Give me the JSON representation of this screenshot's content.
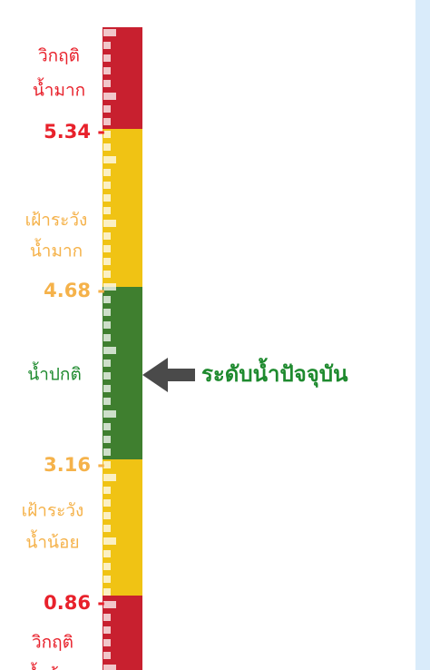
{
  "zones": [
    {
      "label": [
        "วิกฤติ",
        "น้ำมาก"
      ]
    },
    {
      "label": [
        "เฝ้าระวัง",
        "น้ำมาก"
      ]
    },
    {
      "label": [
        "น้ำปกติ"
      ]
    },
    {
      "label": [
        "เฝ้าระวัง",
        "น้ำน้อย"
      ]
    },
    {
      "label": [
        "วิกฤติ",
        "น้ำน้อย"
      ]
    }
  ],
  "levels": [
    "5.34 -",
    "4.68 -",
    "3.16 -",
    "0.86 -"
  ],
  "current_level_label": "ระดับน้ำปัจจุบัน"
}
